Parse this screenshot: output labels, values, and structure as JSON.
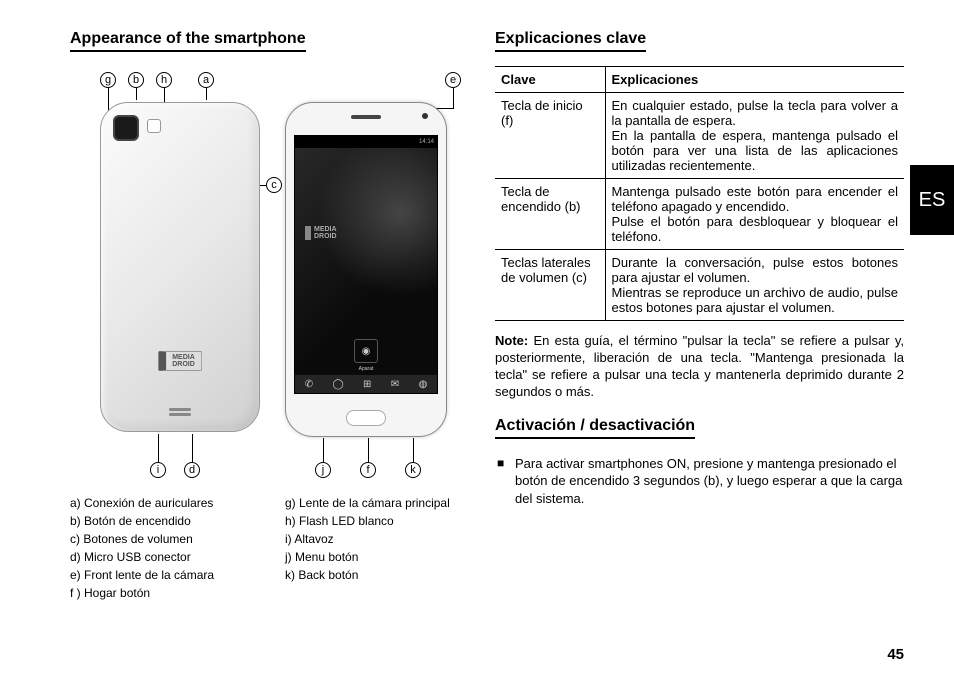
{
  "left": {
    "title": "Appearance of the smartphone",
    "callouts": {
      "a": "a",
      "b": "b",
      "c": "c",
      "d": "d",
      "e": "e",
      "f": "f",
      "g": "g",
      "h": "h",
      "i": "i",
      "j": "j",
      "k": "k"
    },
    "back_logo_line1": "MEDIA",
    "back_logo_line2": "DROID",
    "screen_time": "14:14",
    "screen_logo_line1": "MEDIA",
    "screen_logo_line2": "DROID",
    "app_label": "Aparat",
    "legend_left": {
      "a": "a)  Conexión de auriculares",
      "b": "b)  Botón de encendido",
      "c": "c)  Botones de volumen",
      "d": "d)  Micro USB conector",
      "e": "e)  Front lente de la cámara",
      "f": "f )  Hogar botón"
    },
    "legend_right": {
      "g": "g)  Lente de la cámara principal",
      "h": "h)  Flash LED blanco",
      "i": "i)   Altavoz",
      "j": "j)   Menu botón",
      "k": "k)  Back botón"
    }
  },
  "right": {
    "title1": "Explicaciones clave",
    "th1": "Clave",
    "th2": "Explicaciones",
    "rows": [
      {
        "key": "Tecla de inicio (f)",
        "exp": "En cualquier estado, pulse la tecla para volver a la pantalla de espera.\nEn la pantalla de espera, mantenga pulsado el botón para ver una lista de las aplicaciones utilizadas recientemente."
      },
      {
        "key": "Tecla de encendido (b)",
        "exp": "Mantenga pulsado este botón para encender el teléfono apagado y encendido.\nPulse el botón para desbloquear y bloquear el teléfono."
      },
      {
        "key": "Teclas laterales de volumen (c)",
        "exp": "Durante la conversación, pulse estos botones para ajustar el volumen.\nMientras se reproduce un archivo de audio, pulse estos botones para ajustar el volumen."
      }
    ],
    "note_label": "Note:",
    "note_text": " En esta guía, el término \"pulsar la tecla\" se refiere a pulsar y, posteriormente, liberación de una tecla. \"Mantenga presionada la tecla\" se refiere a pulsar una tecla y mantenerla deprimido durante 2 segundos o más.",
    "title2": "Activación / desactivación",
    "bullet": "Para activar smartphones ON, presione y mantenga presionado el botón de encendido 3 segundos (b), y luego esperar a que la carga del sistema.",
    "lang_tab": "ES",
    "page_number": "45"
  },
  "colors": {
    "text": "#000000",
    "bg": "#ffffff",
    "tab_bg": "#000000",
    "tab_fg": "#ffffff"
  }
}
